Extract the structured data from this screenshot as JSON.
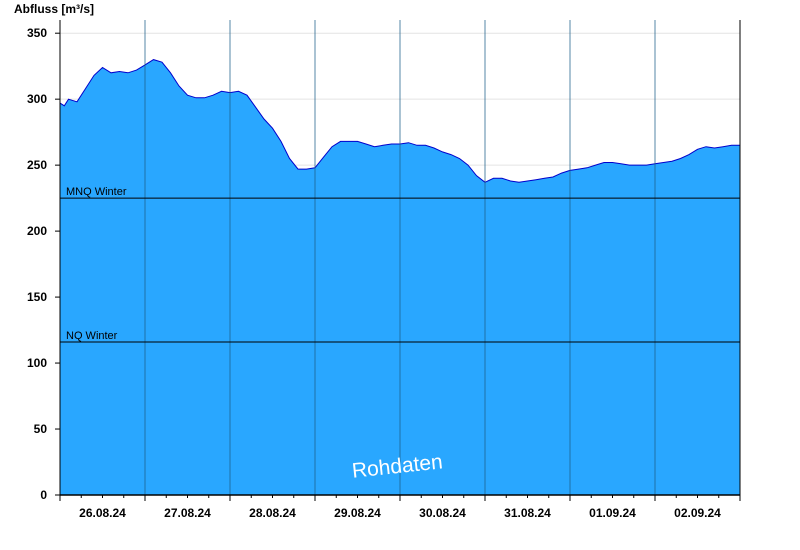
{
  "chart_data": {
    "type": "area",
    "ylabel": "Abfluss [m³/s]",
    "ylim": [
      0,
      360
    ],
    "yticks": [
      0,
      50,
      100,
      150,
      200,
      250,
      300,
      350
    ],
    "x_start": "26.08.24",
    "x_days": [
      "26.08.24",
      "27.08.24",
      "28.08.24",
      "29.08.24",
      "30.08.24",
      "31.08.24",
      "01.09.24",
      "02.09.24"
    ],
    "grid": true,
    "fill_color": "#29a7ff",
    "line_color": "#0000cc",
    "reference_lines": [
      {
        "label": "MNQ Winter",
        "value": 225
      },
      {
        "label": "NQ Winter",
        "value": 116
      }
    ],
    "watermark": "Rohdaten",
    "series": [
      {
        "x": [
          0.0,
          0.05,
          0.1,
          0.2,
          0.3,
          0.4,
          0.5,
          0.6,
          0.7,
          0.8,
          0.9,
          1.0,
          1.1,
          1.2,
          1.3,
          1.4,
          1.5,
          1.6,
          1.7,
          1.8,
          1.9,
          2.0,
          2.1,
          2.2,
          2.3,
          2.4,
          2.5,
          2.6,
          2.7,
          2.8,
          2.9,
          3.0,
          3.1,
          3.2,
          3.3,
          3.4,
          3.5,
          3.6,
          3.7,
          3.8,
          3.9,
          4.0,
          4.1,
          4.2,
          4.3,
          4.4,
          4.5,
          4.6,
          4.7,
          4.8,
          4.9,
          5.0,
          5.1,
          5.2,
          5.3,
          5.4,
          5.5,
          5.6,
          5.7,
          5.8,
          5.9,
          6.0,
          6.1,
          6.2,
          6.3,
          6.4,
          6.5,
          6.6,
          6.7,
          6.8,
          6.9,
          7.0,
          7.1,
          7.2,
          7.3,
          7.4,
          7.5,
          7.6,
          7.7,
          7.8,
          7.9,
          8.0
        ],
        "values": [
          297,
          295,
          300,
          298,
          308,
          318,
          324,
          320,
          321,
          320,
          322,
          326,
          330,
          328,
          320,
          310,
          303,
          301,
          301,
          303,
          306,
          305,
          306,
          303,
          294,
          285,
          278,
          268,
          255,
          247,
          247,
          248,
          256,
          264,
          268,
          268,
          268,
          266,
          264,
          265,
          266,
          266,
          267,
          265,
          265,
          263,
          260,
          258,
          255,
          250,
          242,
          237,
          240,
          240,
          238,
          237,
          238,
          239,
          240,
          241,
          244,
          246,
          247,
          248,
          250,
          252,
          252,
          251,
          250,
          250,
          250,
          251,
          252,
          253,
          255,
          258,
          262,
          264,
          263,
          264,
          265,
          265
        ]
      }
    ]
  }
}
